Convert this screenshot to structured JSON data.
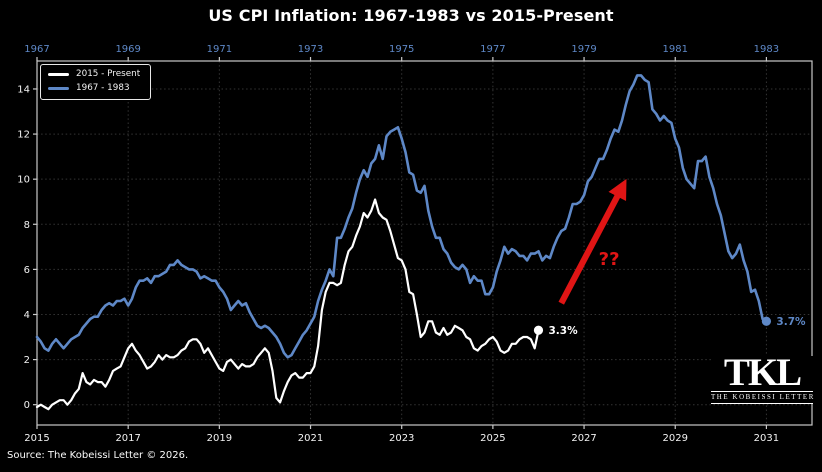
{
  "title": "US CPI Inflation: 1967-1983 vs 2015-Present",
  "source": "Source: The Kobeissi Letter © 2026.",
  "logo": {
    "big": "TKL",
    "small": "THE KOBEISSI LETTER"
  },
  "legend": [
    {
      "label": "2015 - Present",
      "color": "#ffffff"
    },
    {
      "label": "1967 - 1983",
      "color": "#5e88c7"
    }
  ],
  "chart_data": {
    "type": "line",
    "title": "US CPI Inflation: 1967-1983 vs 2015-Present",
    "grid": true,
    "style": {
      "background": "#000000",
      "grid_color": "#343434",
      "spine_color": "#c9c9c9",
      "tick_label_color": "#f2f2f2",
      "top_axis_color": "#5e88c7",
      "accent_red": "#e01515"
    },
    "y_axis": {
      "ticks": [
        0,
        2,
        4,
        6,
        8,
        10,
        12,
        14
      ],
      "range": [
        -0.9,
        15.24
      ]
    },
    "x_axis_bottom": {
      "ticks": [
        2015,
        2017,
        2019,
        2021,
        2023,
        2025,
        2027,
        2029,
        2031
      ],
      "range": [
        2015,
        2032
      ]
    },
    "x_axis_top": {
      "ticks": [
        1967,
        1969,
        1971,
        1973,
        1975,
        1977,
        1979,
        1981,
        1983
      ],
      "range": [
        1967,
        1984
      ]
    },
    "series": [
      {
        "name": "2015 - Present",
        "axis": "bottom",
        "color": "#ffffff",
        "width": 2.2,
        "start_year": 2015,
        "points_per_year": 12,
        "end_label": "3.3%",
        "values": [
          -0.1,
          0.0,
          -0.1,
          -0.2,
          0.0,
          0.1,
          0.2,
          0.2,
          0.0,
          0.2,
          0.5,
          0.7,
          1.4,
          1.0,
          0.9,
          1.1,
          1.0,
          1.0,
          0.8,
          1.1,
          1.5,
          1.6,
          1.7,
          2.1,
          2.5,
          2.7,
          2.4,
          2.2,
          1.9,
          1.6,
          1.7,
          1.9,
          2.2,
          2.0,
          2.2,
          2.1,
          2.1,
          2.2,
          2.4,
          2.5,
          2.8,
          2.9,
          2.9,
          2.7,
          2.3,
          2.5,
          2.2,
          1.9,
          1.6,
          1.5,
          1.9,
          2.0,
          1.8,
          1.6,
          1.8,
          1.7,
          1.7,
          1.8,
          2.1,
          2.3,
          2.5,
          2.3,
          1.5,
          0.3,
          0.1,
          0.6,
          1.0,
          1.3,
          1.4,
          1.2,
          1.2,
          1.4,
          1.4,
          1.7,
          2.6,
          4.2,
          5.0,
          5.4,
          5.4,
          5.3,
          5.4,
          6.2,
          6.8,
          7.0,
          7.5,
          7.9,
          8.5,
          8.3,
          8.6,
          9.1,
          8.5,
          8.3,
          8.2,
          7.7,
          7.1,
          6.5,
          6.4,
          6.0,
          5.0,
          4.9,
          4.0,
          3.0,
          3.2,
          3.7,
          3.7,
          3.2,
          3.1,
          3.4,
          3.1,
          3.2,
          3.5,
          3.4,
          3.3,
          3.0,
          2.9,
          2.5,
          2.4,
          2.6,
          2.7,
          2.9,
          3.0,
          2.8,
          2.4,
          2.3,
          2.4,
          2.7,
          2.7,
          2.9,
          3.0,
          3.0,
          2.9,
          2.5,
          3.3
        ]
      },
      {
        "name": "1967 - 1983",
        "axis": "top",
        "color": "#5e88c7",
        "width": 2.6,
        "start_year": 1967,
        "points_per_year": 12,
        "end_label": "3.7%",
        "values": [
          3.0,
          2.8,
          2.5,
          2.4,
          2.7,
          2.9,
          2.7,
          2.5,
          2.7,
          2.9,
          3.0,
          3.1,
          3.4,
          3.6,
          3.8,
          3.9,
          3.9,
          4.2,
          4.4,
          4.5,
          4.4,
          4.6,
          4.6,
          4.7,
          4.4,
          4.7,
          5.2,
          5.5,
          5.5,
          5.6,
          5.4,
          5.7,
          5.7,
          5.8,
          5.9,
          6.2,
          6.2,
          6.4,
          6.2,
          6.1,
          6.0,
          6.0,
          5.9,
          5.6,
          5.7,
          5.6,
          5.5,
          5.5,
          5.2,
          5.0,
          4.7,
          4.2,
          4.4,
          4.6,
          4.4,
          4.5,
          4.1,
          3.8,
          3.5,
          3.4,
          3.5,
          3.4,
          3.2,
          3.0,
          2.7,
          2.3,
          2.1,
          2.2,
          2.5,
          2.8,
          3.1,
          3.3,
          3.6,
          3.9,
          4.6,
          5.1,
          5.5,
          6.0,
          5.7,
          7.4,
          7.4,
          7.8,
          8.3,
          8.7,
          9.4,
          10.0,
          10.4,
          10.1,
          10.7,
          10.9,
          11.5,
          10.9,
          11.9,
          12.1,
          12.2,
          12.3,
          11.8,
          11.2,
          10.3,
          10.2,
          9.5,
          9.4,
          9.7,
          8.6,
          7.9,
          7.4,
          7.4,
          6.9,
          6.7,
          6.3,
          6.1,
          6.0,
          6.2,
          6.0,
          5.4,
          5.7,
          5.5,
          5.5,
          4.9,
          4.9,
          5.2,
          5.9,
          6.4,
          7.0,
          6.7,
          6.9,
          6.8,
          6.6,
          6.6,
          6.4,
          6.7,
          6.7,
          6.8,
          6.4,
          6.6,
          6.5,
          7.0,
          7.4,
          7.7,
          7.8,
          8.3,
          8.9,
          8.9,
          9.0,
          9.3,
          9.9,
          10.1,
          10.5,
          10.9,
          10.9,
          11.3,
          11.8,
          12.2,
          12.1,
          12.6,
          13.3,
          13.9,
          14.2,
          14.6,
          14.6,
          14.4,
          14.3,
          13.1,
          12.9,
          12.6,
          12.8,
          12.6,
          12.5,
          11.8,
          11.4,
          10.5,
          10.0,
          9.8,
          9.6,
          10.8,
          10.8,
          11.0,
          10.1,
          9.6,
          8.9,
          8.4,
          7.6,
          6.8,
          6.5,
          6.7,
          7.1,
          6.4,
          5.9,
          5.0,
          5.1,
          4.6,
          3.8,
          3.7
        ]
      }
    ],
    "annotations": {
      "arrow": {
        "from": {
          "x": 2026.5,
          "y": 4.5
        },
        "to": {
          "x": 2027.85,
          "y": 9.7
        },
        "color": "#e01515"
      },
      "question": {
        "text": "??",
        "x": 2027.55,
        "y": 6.2,
        "color": "#e01515"
      }
    }
  }
}
